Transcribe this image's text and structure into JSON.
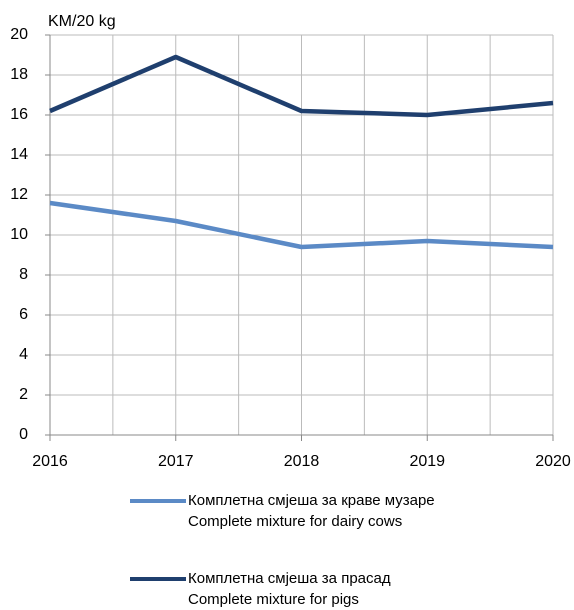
{
  "chart_data": {
    "type": "line",
    "y_axis_label": "KM/20 kg",
    "x": [
      2016,
      2017,
      2018,
      2019,
      2020
    ],
    "series": [
      {
        "name": "Комплетна смјеша за краве музаре\nComplete mixture for dairy cows",
        "color": "#5b8ac6",
        "values": [
          11.6,
          10.7,
          9.4,
          9.7,
          9.4
        ]
      },
      {
        "name": "Комплетна смјеша за прасад\nComplete mixture for pigs",
        "color": "#1f3f6e",
        "values": [
          16.2,
          18.9,
          16.2,
          16.0,
          16.6
        ]
      }
    ],
    "xlim": [
      2016,
      2020
    ],
    "xticks": [
      2016,
      2017,
      2018,
      2019,
      2020
    ],
    "ylim": [
      0,
      20
    ],
    "yticks": [
      0,
      2,
      4,
      6,
      8,
      10,
      12,
      14,
      16,
      18,
      20
    ],
    "grid": true
  }
}
